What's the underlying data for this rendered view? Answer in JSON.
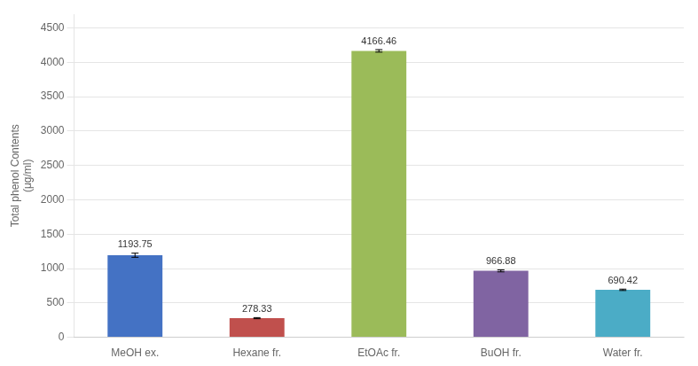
{
  "chart_data": {
    "type": "bar",
    "categories": [
      "MeOH ex.",
      "Hexane fr.",
      "EtOAc fr.",
      "BuOH fr.",
      "Water fr."
    ],
    "values": [
      1193.75,
      278.33,
      4166.46,
      966.88,
      690.42
    ],
    "errors": [
      30,
      8,
      18,
      15,
      10
    ],
    "colors": [
      "#4472c4",
      "#c0504d",
      "#9bbb59",
      "#8064a2",
      "#4bacc6"
    ],
    "data_labels": true,
    "ylabel": "Total phenol Contents\n(μg/ml)",
    "ylim": [
      0,
      4700
    ],
    "yticks": [
      0,
      500,
      1000,
      1500,
      2000,
      2500,
      3000,
      3500,
      4000,
      4500
    ],
    "grid": true
  }
}
